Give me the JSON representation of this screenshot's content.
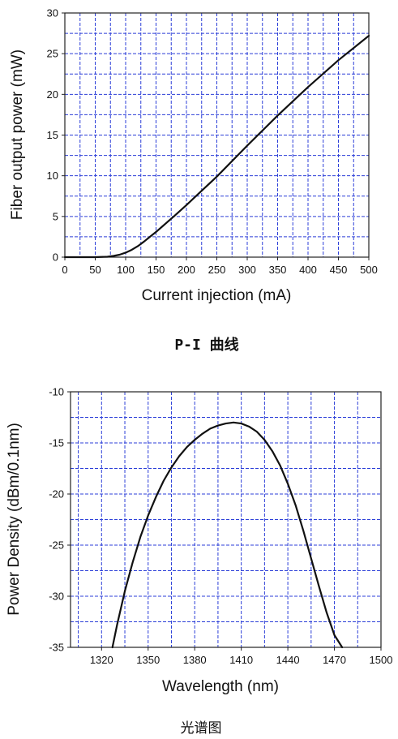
{
  "chart_data": [
    {
      "type": "line",
      "caption": "P-I 曲线",
      "xlabel": "Current injection (mA)",
      "ylabel": "Fiber output power (mW)",
      "xlim": [
        0,
        500
      ],
      "ylim": [
        0,
        30
      ],
      "xticks": [
        0,
        50,
        100,
        150,
        200,
        250,
        300,
        350,
        400,
        450,
        500
      ],
      "yticks": [
        0,
        5,
        10,
        15,
        20,
        25,
        30
      ],
      "grid": true,
      "series": [
        {
          "color": "#111111",
          "x": [
            0,
            50,
            70,
            80,
            90,
            100,
            110,
            120,
            130,
            140,
            150,
            160,
            170,
            180,
            200,
            220,
            250,
            300,
            350,
            400,
            450,
            500
          ],
          "y": [
            0,
            0,
            0.05,
            0.15,
            0.3,
            0.55,
            0.9,
            1.35,
            1.9,
            2.5,
            3.1,
            3.75,
            4.4,
            5.05,
            6.4,
            7.8,
            9.9,
            13.7,
            17.4,
            20.9,
            24.2,
            27.2
          ]
        }
      ]
    },
    {
      "type": "line",
      "caption": "光谱图",
      "xlabel": "Wavelength (nm)",
      "ylabel": "Power Density (dBm/0.1nm)",
      "xlim": [
        1300,
        1500
      ],
      "ylim": [
        -35,
        -10
      ],
      "xticks": [
        1320,
        1350,
        1380,
        1410,
        1440,
        1470,
        1500
      ],
      "yticks": [
        -10,
        -15,
        -20,
        -25,
        -30,
        -35
      ],
      "grid": true,
      "series": [
        {
          "color": "#111111",
          "x": [
            1327,
            1330,
            1335,
            1340,
            1345,
            1350,
            1355,
            1360,
            1365,
            1370,
            1375,
            1380,
            1385,
            1390,
            1395,
            1400,
            1405,
            1410,
            1415,
            1420,
            1425,
            1430,
            1435,
            1440,
            1445,
            1450,
            1455,
            1460,
            1465,
            1470,
            1475
          ],
          "y": [
            -35,
            -32.8,
            -29.5,
            -26.7,
            -24.2,
            -22.1,
            -20.3,
            -18.7,
            -17.4,
            -16.3,
            -15.4,
            -14.7,
            -14.1,
            -13.6,
            -13.3,
            -13.1,
            -13.0,
            -13.1,
            -13.4,
            -13.9,
            -14.7,
            -15.8,
            -17.2,
            -19.0,
            -21.1,
            -23.6,
            -26.3,
            -29.0,
            -31.6,
            -33.8,
            -35
          ]
        }
      ]
    }
  ]
}
